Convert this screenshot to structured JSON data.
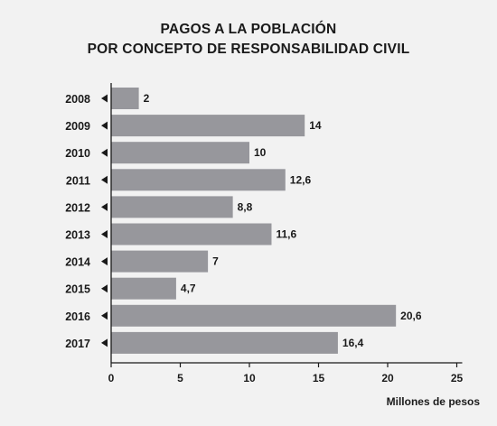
{
  "chart_data": {
    "type": "bar",
    "orientation": "horizontal",
    "title": "PAGOS A LA POBLACIÓN",
    "subtitle": "POR CONCEPTO DE RESPONSABILIDAD CIVIL",
    "xlabel": "Millones de pesos",
    "ylabel": "",
    "categories": [
      "2008",
      "2009",
      "2010",
      "2011",
      "2012",
      "2013",
      "2014",
      "2015",
      "2016",
      "2017"
    ],
    "values": [
      2,
      14,
      10,
      12.6,
      8.8,
      11.6,
      7,
      4.7,
      20.6,
      16.4
    ],
    "value_labels": [
      "2",
      "14",
      "10",
      "12,6",
      "8,8",
      "11,6",
      "7",
      "4,7",
      "20,6",
      "16,4"
    ],
    "xlim": [
      0,
      25
    ],
    "xticks": [
      0,
      5,
      10,
      15,
      20,
      25
    ],
    "grid": false,
    "colors": {
      "bar": "#97979c",
      "text": "#1a1a1a",
      "axis": "#1a1a1a",
      "background": "#f2f2f2"
    }
  }
}
